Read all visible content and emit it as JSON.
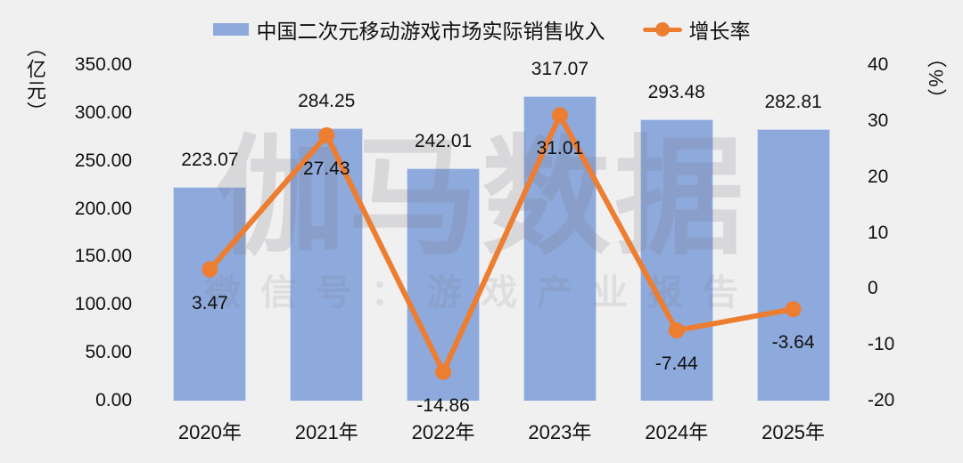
{
  "chart_data": {
    "type": "bar",
    "title": "",
    "categories": [
      "2020年",
      "2021年",
      "2022年",
      "2023年",
      "2024年",
      "2025年"
    ],
    "series": [
      {
        "name": "中国二次元移动游戏市场实际销售收入",
        "kind": "bar",
        "axis": "left",
        "color": "#8EA9DB",
        "values": [
          223.07,
          284.25,
          242.01,
          317.07,
          293.48,
          282.81
        ],
        "labels": [
          "223.07",
          "284.25",
          "242.01",
          "317.07",
          "293.48",
          "282.81"
        ]
      },
      {
        "name": "增长率",
        "kind": "line",
        "axis": "right",
        "color": "#ED7D31",
        "values": [
          3.47,
          27.43,
          -14.86,
          31.01,
          -7.44,
          -3.64
        ],
        "labels": [
          "3.47",
          "27.43",
          "-14.86",
          "31.01",
          "-7.44",
          "-3.64"
        ]
      }
    ],
    "left_axis": {
      "title": "（亿元）",
      "min": 0,
      "max": 350,
      "step": 50,
      "ticks": [
        "350.00",
        "300.00",
        "250.00",
        "200.00",
        "150.00",
        "100.00",
        "50.00",
        "0.00"
      ]
    },
    "right_axis": {
      "title": "（%）",
      "min": -20,
      "max": 40,
      "step": 10,
      "ticks": [
        "40",
        "30",
        "20",
        "10",
        "0",
        "-10",
        "-20"
      ]
    },
    "legend_position": "top",
    "grid": false,
    "background": "#f0f0f1"
  },
  "watermark": {
    "line1": "伽马数据",
    "line2": "微信号：游戏产业报告"
  }
}
